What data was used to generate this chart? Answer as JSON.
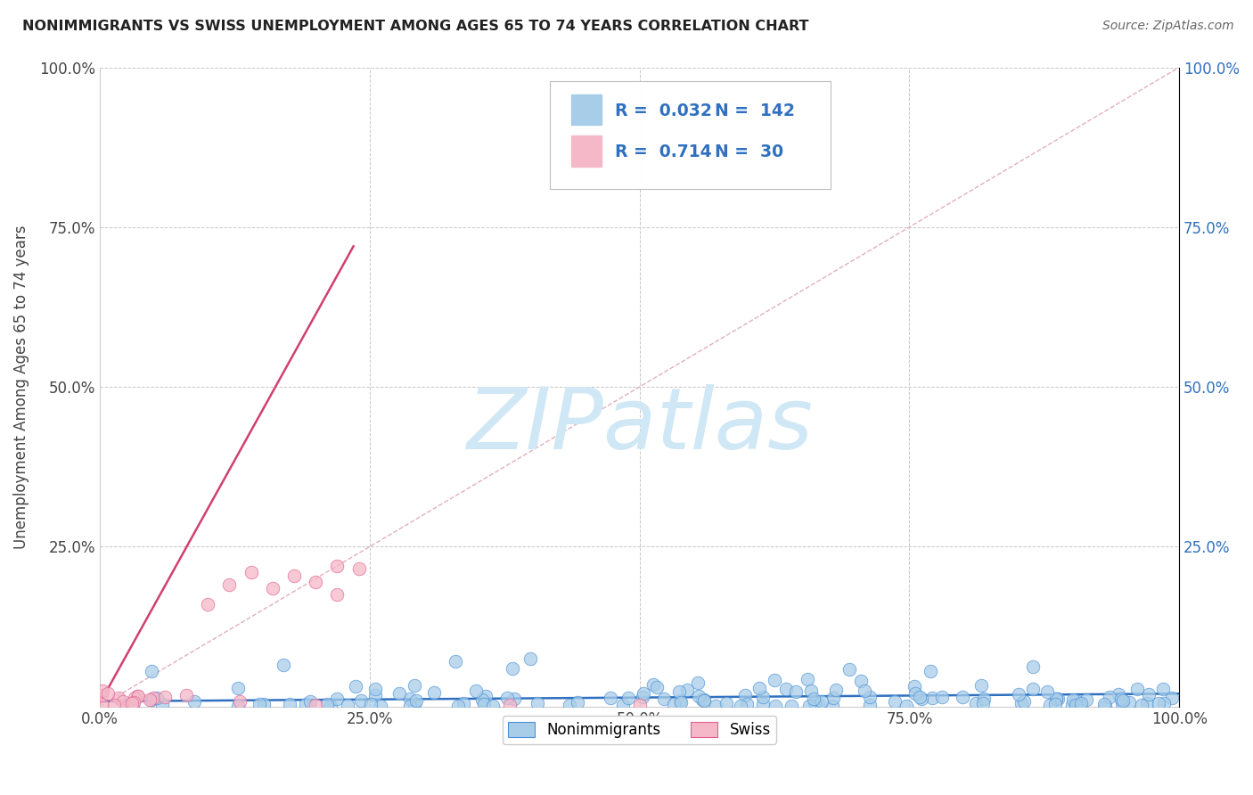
{
  "title": "NONIMMIGRANTS VS SWISS UNEMPLOYMENT AMONG AGES 65 TO 74 YEARS CORRELATION CHART",
  "source": "Source: ZipAtlas.com",
  "xlabel": "",
  "ylabel": "Unemployment Among Ages 65 to 74 years",
  "xlim": [
    0.0,
    1.0
  ],
  "ylim": [
    0.0,
    1.0
  ],
  "xticks": [
    0.0,
    0.25,
    0.5,
    0.75,
    1.0
  ],
  "yticks": [
    0.0,
    0.25,
    0.5,
    0.75,
    1.0
  ],
  "xticklabels": [
    "0.0%",
    "25.0%",
    "50.0%",
    "75.0%",
    "100.0%"
  ],
  "yticklabels_left": [
    "",
    "25.0%",
    "50.0%",
    "75.0%",
    "100.0%"
  ],
  "yticklabels_right": [
    "",
    "25.0%",
    "50.0%",
    "75.0%",
    "100.0%"
  ],
  "blue_fill": "#a8cde8",
  "blue_edge": "#4a90d9",
  "pink_fill": "#f5b8c8",
  "pink_edge": "#e06090",
  "blue_line_color": "#3070c0",
  "pink_line_color": "#d04070",
  "diag_line_color": "#e0b0c0",
  "watermark_color": "#d0e8f5",
  "background_color": "#ffffff",
  "grid_color": "#c8c8c8",
  "title_color": "#222222",
  "tick_color_left": "#444444",
  "tick_color_right": "#3070c0",
  "legend_R_blue": "0.032",
  "legend_N_blue": "142",
  "legend_R_pink": "0.714",
  "legend_N_pink": "30",
  "watermark": "ZIPatlas",
  "blue_line_x": [
    0.0,
    1.0
  ],
  "blue_line_y": [
    0.008,
    0.02
  ],
  "pink_line_x": [
    0.0,
    0.235
  ],
  "pink_line_y": [
    0.005,
    0.72
  ],
  "diag_line_x": [
    0.0,
    1.0
  ],
  "diag_line_y": [
    0.0,
    1.0
  ]
}
